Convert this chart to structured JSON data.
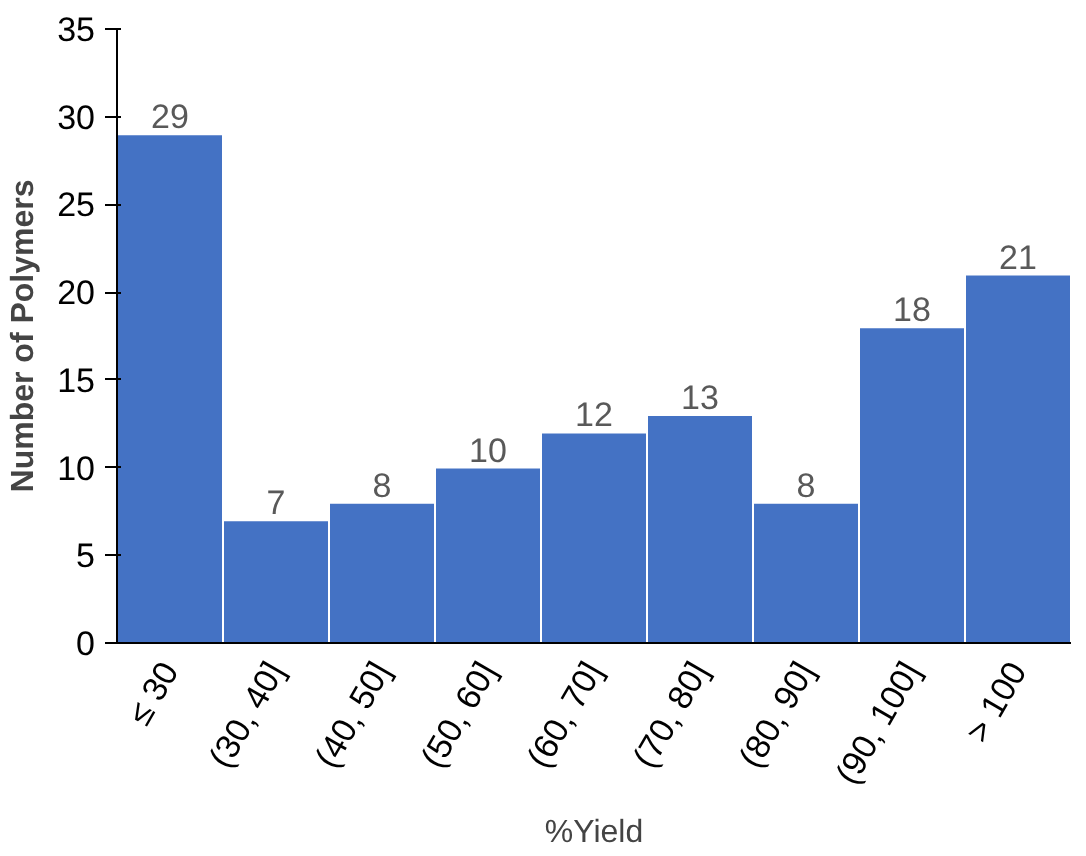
{
  "chart_data": {
    "type": "bar",
    "xlabel": "%Yield",
    "ylabel": "Number of Polymers",
    "categories": [
      "≤ 30",
      "(30, 40]",
      "(40, 50]",
      "(50, 60]",
      "(60, 70]",
      "(70, 80]",
      "(80, 90]",
      "(90, 100]",
      "> 100"
    ],
    "values": [
      29,
      7,
      8,
      10,
      12,
      13,
      8,
      18,
      21
    ],
    "color": "#4472c4",
    "data_labels": true,
    "ylim": [
      0,
      35
    ],
    "yticks": [
      0,
      5,
      10,
      15,
      20,
      25,
      30,
      35
    ],
    "grid": false
  }
}
